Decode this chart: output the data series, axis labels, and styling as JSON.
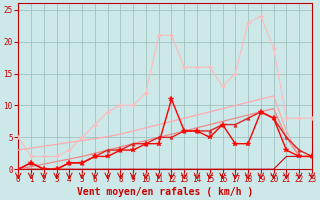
{
  "xlabel": "Vent moyen/en rafales ( km/h )",
  "xlim": [
    0,
    23
  ],
  "ylim": [
    0,
    26
  ],
  "xticks": [
    0,
    1,
    2,
    3,
    4,
    5,
    6,
    7,
    8,
    9,
    10,
    11,
    12,
    13,
    14,
    15,
    16,
    17,
    18,
    19,
    20,
    21,
    22,
    23
  ],
  "yticks": [
    0,
    5,
    10,
    15,
    20,
    25
  ],
  "background_color": "#cce8e8",
  "grid_color": "#99bbbb",
  "series": [
    {
      "x": [
        0,
        1,
        2,
        3,
        4,
        5,
        6,
        7,
        8,
        9,
        10,
        11,
        12,
        13,
        14,
        15,
        16,
        17,
        18,
        19,
        20,
        21,
        22,
        23
      ],
      "y": [
        3,
        3.3,
        3.6,
        3.9,
        4.2,
        4.5,
        4.8,
        5.1,
        5.5,
        6,
        6.5,
        7,
        7.5,
        8,
        8.5,
        9,
        9.5,
        10,
        10.5,
        11,
        11.5,
        6,
        2,
        2
      ],
      "color": "#ffaaaa",
      "linewidth": 0.9,
      "marker": null,
      "linestyle": "-"
    },
    {
      "x": [
        0,
        1,
        2,
        3,
        4,
        5,
        6,
        7,
        8,
        9,
        10,
        11,
        12,
        13,
        14,
        15,
        16,
        17,
        18,
        19,
        20,
        21,
        22,
        23
      ],
      "y": [
        5,
        2,
        2,
        2,
        3,
        5,
        7,
        9,
        10,
        10,
        12,
        21,
        21,
        16,
        16,
        16,
        13,
        15,
        23,
        24,
        19,
        8,
        8,
        8
      ],
      "color": "#ffbbbb",
      "linewidth": 0.8,
      "marker": "D",
      "markersize": 2,
      "linestyle": "-"
    },
    {
      "x": [
        0,
        1,
        2,
        3,
        4,
        5,
        6,
        7,
        8,
        9,
        10,
        11,
        12,
        13,
        14,
        15,
        16,
        17,
        18,
        19,
        20,
        21,
        22,
        23
      ],
      "y": [
        0,
        0,
        0,
        0,
        0,
        0,
        0,
        0,
        0,
        0,
        0,
        0,
        0,
        0,
        0,
        0,
        0,
        0,
        0,
        0,
        0,
        2,
        2,
        2
      ],
      "color": "#cc0000",
      "linewidth": 0.8,
      "marker": null,
      "linestyle": "-"
    },
    {
      "x": [
        0,
        1,
        2,
        3,
        4,
        5,
        6,
        7,
        8,
        9,
        10,
        11,
        12,
        13,
        14,
        15,
        16,
        17,
        18,
        19,
        20,
        21,
        22,
        23
      ],
      "y": [
        0,
        0.4,
        0.8,
        1.2,
        1.6,
        2,
        2.5,
        3,
        3.5,
        4,
        4.5,
        5,
        5.5,
        6,
        6.5,
        7,
        7.5,
        8,
        8.5,
        9,
        9.5,
        5,
        2,
        2
      ],
      "color": "#ee8888",
      "linewidth": 0.9,
      "marker": null,
      "linestyle": "-"
    },
    {
      "x": [
        0,
        1,
        2,
        3,
        4,
        5,
        6,
        7,
        8,
        9,
        10,
        11,
        12,
        13,
        14,
        15,
        16,
        17,
        18,
        19,
        20,
        21,
        22,
        23
      ],
      "y": [
        0,
        1,
        0,
        0,
        1,
        1,
        2,
        3,
        3,
        4,
        4,
        5,
        5,
        6,
        6,
        6,
        7,
        7,
        8,
        9,
        8,
        5,
        3,
        2
      ],
      "color": "#dd2222",
      "linewidth": 1.0,
      "marker": "^",
      "markersize": 2.5,
      "linestyle": "-"
    },
    {
      "x": [
        0,
        1,
        2,
        3,
        4,
        5,
        6,
        7,
        8,
        9,
        10,
        11,
        12,
        13,
        14,
        15,
        16,
        17,
        18,
        19,
        20,
        21,
        22,
        23
      ],
      "y": [
        0,
        1,
        0,
        0,
        1,
        1,
        2,
        2,
        3,
        3,
        4,
        4,
        11,
        6,
        6,
        5,
        7,
        4,
        4,
        9,
        8,
        3,
        2,
        2
      ],
      "color": "#ff0000",
      "linewidth": 1.0,
      "marker": "*",
      "markersize": 4,
      "linestyle": "-"
    }
  ],
  "label_fontsize": 6.5,
  "tick_fontsize": 5.5,
  "xlabel_fontsize": 7
}
